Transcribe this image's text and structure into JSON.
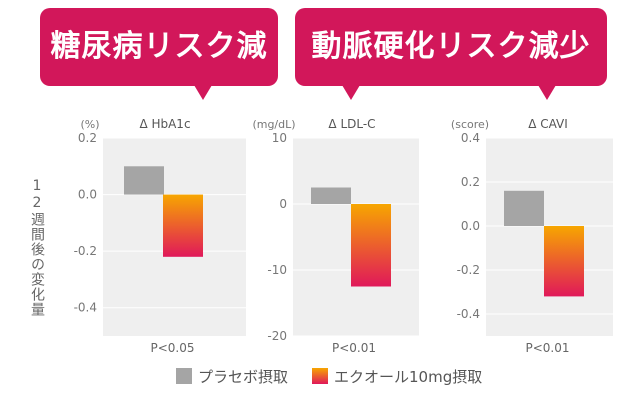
{
  "headers": [
    "糖尿病リスク減少",
    "動脈硬化リスク減少"
  ],
  "y_axis_title": "12週間後の変化量",
  "legend": {
    "placebo": "プラセボ摂取",
    "equol": "エクオール10mg摂取"
  },
  "colors": {
    "bubble": "#d2175a",
    "placebo": "#a5a5a5",
    "equol_top": "#f7a600",
    "equol_bottom": "#e0185a",
    "plot_bg": "#efefef"
  },
  "chart_data": [
    {
      "type": "bar",
      "title": "Δ HbA1c",
      "unit": "(%)",
      "categories": [
        "プラセボ摂取",
        "エクオール10mg摂取"
      ],
      "values": [
        0.1,
        -0.22
      ],
      "ylim": [
        -0.5,
        0.2
      ],
      "ticks": [
        0.2,
        0.0,
        -0.2,
        -0.4
      ],
      "tick_labels": [
        "0.2",
        "0.0",
        "-0.2",
        "-0.4"
      ],
      "pvalue": "P<0.05"
    },
    {
      "type": "bar",
      "title": "Δ LDL-C",
      "unit": "(mg/dL)",
      "categories": [
        "プラセボ摂取",
        "エクオール10mg摂取"
      ],
      "values": [
        2.5,
        -12.5
      ],
      "ylim": [
        -20,
        10
      ],
      "ticks": [
        10,
        0,
        -10,
        -20
      ],
      "tick_labels": [
        "10",
        "0",
        "-10",
        "-20"
      ],
      "pvalue": "P<0.01"
    },
    {
      "type": "bar",
      "title": "Δ CAVI",
      "unit": "(score)",
      "categories": [
        "プラセボ摂取",
        "エクオール10mg摂取"
      ],
      "values": [
        0.16,
        -0.32
      ],
      "ylim": [
        -0.5,
        0.4
      ],
      "ticks": [
        0.4,
        0.2,
        0.0,
        -0.2,
        -0.4
      ],
      "tick_labels": [
        "0.4",
        "0.2",
        "0.0",
        "-0.2",
        "-0.4"
      ],
      "pvalue": "P<0.01"
    }
  ]
}
